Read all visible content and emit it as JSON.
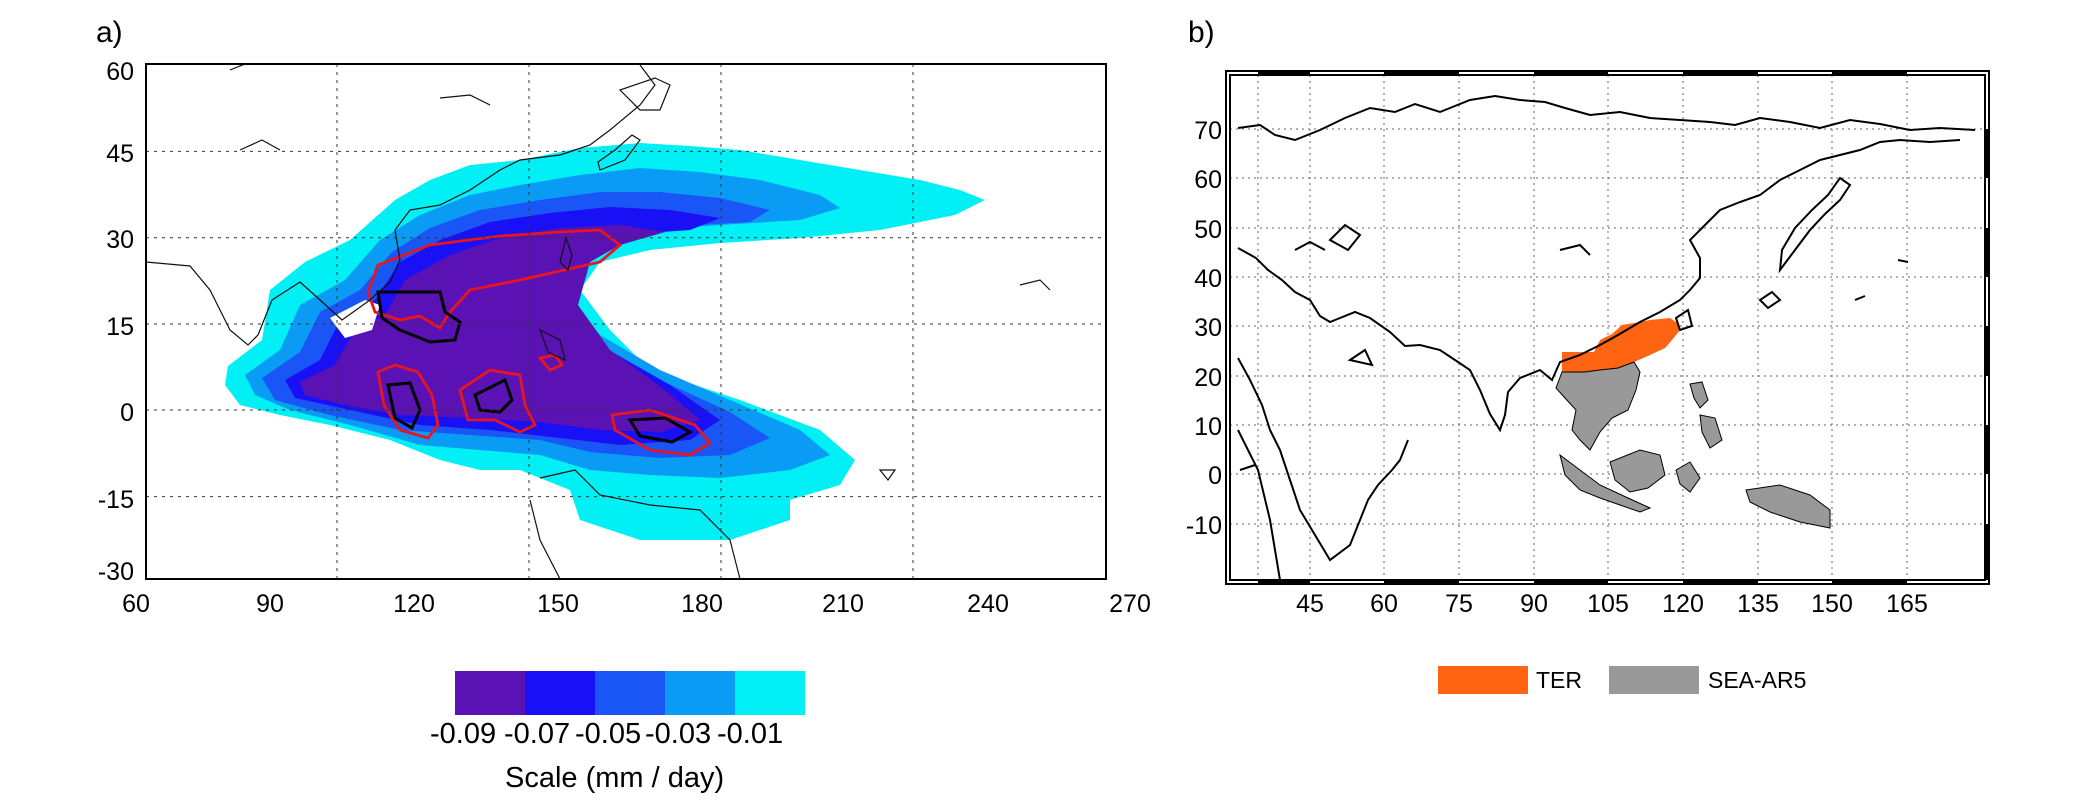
{
  "panel_a": {
    "label": "a)",
    "y_ticks": [
      "60",
      "45",
      "30",
      "15",
      "0",
      "-15",
      "-30"
    ],
    "x_ticks": [
      "60",
      "90",
      "120",
      "150",
      "180",
      "210",
      "240",
      "270"
    ],
    "colorbar": {
      "ticks": [
        "-0.09",
        "-0.07",
        "-0.05",
        "-0.03",
        "-0.01"
      ],
      "colors": [
        "#5a12b4",
        "#1a10f5",
        "#1a55f5",
        "#0a9cf5",
        "#00f0f5"
      ],
      "title": "Scale (mm / day)"
    },
    "contour_color": "#e8141e"
  },
  "panel_b": {
    "label": "b)",
    "y_ticks": [
      "70",
      "60",
      "50",
      "40",
      "30",
      "20",
      "10",
      "0",
      "-10"
    ],
    "x_ticks": [
      "45",
      "60",
      "75",
      "90",
      "105",
      "120",
      "135",
      "150",
      "165"
    ],
    "legend": [
      {
        "label": "TER",
        "color": "#ff6412"
      },
      {
        "label": "SEA-AR5",
        "color": "#999999"
      }
    ]
  }
}
